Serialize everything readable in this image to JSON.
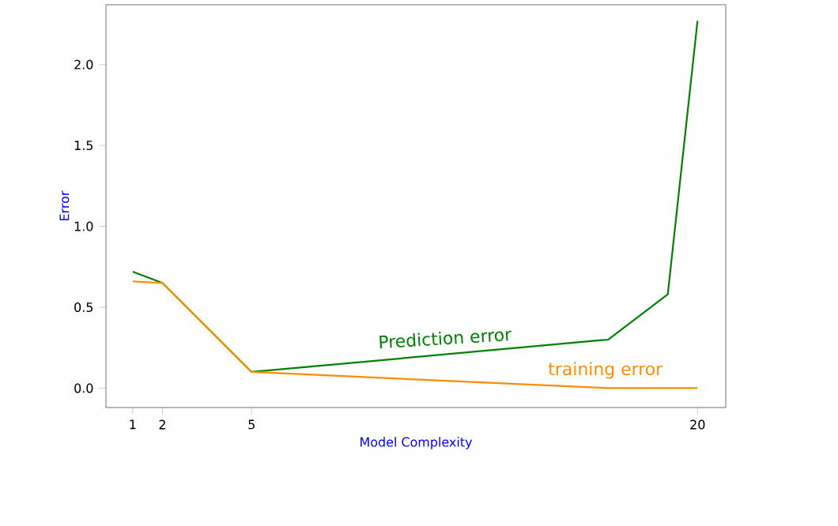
{
  "chart_data": {
    "type": "line",
    "xlabel": "Model Complexity",
    "ylabel": "Error",
    "x": [
      1,
      2,
      5,
      17,
      19,
      20
    ],
    "series": [
      {
        "name": "Prediction error",
        "color": "#008000",
        "values": [
          0.72,
          0.65,
          0.1,
          0.3,
          0.58,
          2.27
        ]
      },
      {
        "name": "training error",
        "color": "#ff8c00",
        "x": [
          1,
          2,
          5,
          17,
          20
        ],
        "values": [
          0.66,
          0.65,
          0.1,
          0.0,
          0.0
        ]
      }
    ],
    "xlim": [
      0.1,
      20.95
    ],
    "ylim": [
      -0.12,
      2.37
    ],
    "xticks": [
      1,
      2,
      5,
      20
    ],
    "yticks": [
      {
        "value": 0,
        "label": "0.0"
      },
      0.5,
      {
        "value": 1,
        "label": "1.0"
      },
      1.5,
      {
        "value": 2,
        "label": "2.0"
      }
    ],
    "legend": false,
    "grid": false,
    "marker": "none",
    "line_style": "solid"
  }
}
